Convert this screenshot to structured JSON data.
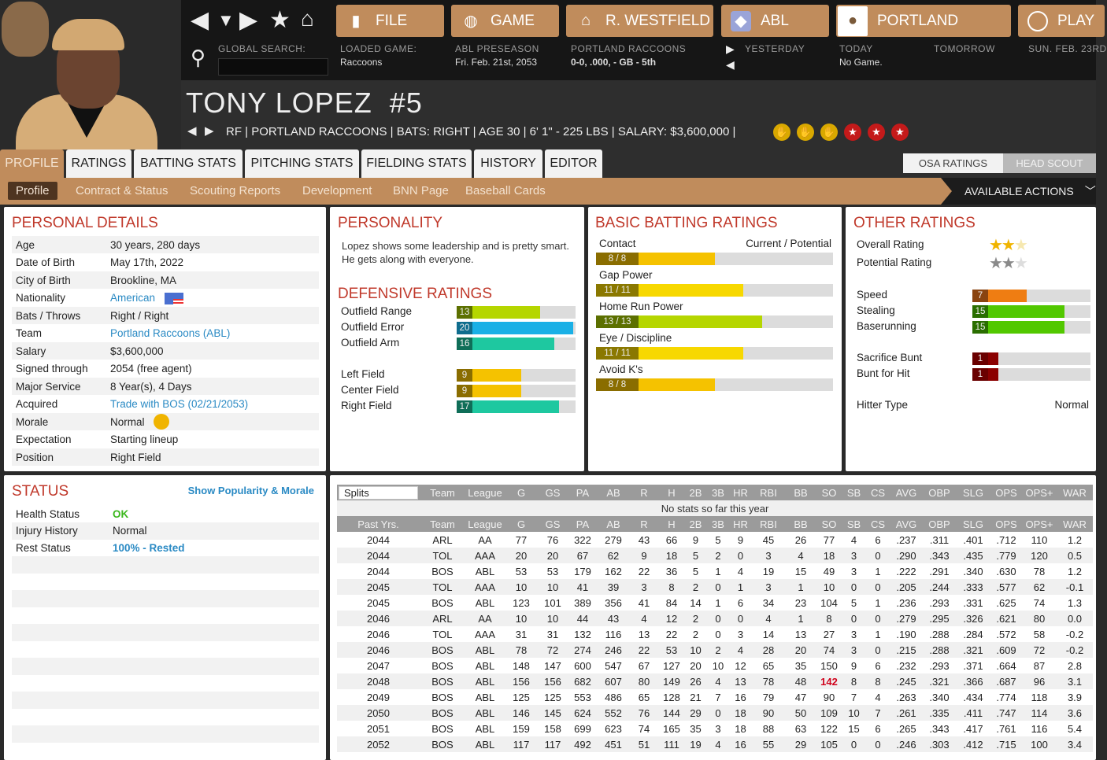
{
  "topbar": {
    "buttons": [
      {
        "label": "FILE",
        "icon": "file-icon"
      },
      {
        "label": "GAME",
        "icon": "globe-icon"
      },
      {
        "label": "R. WESTFIELD",
        "icon": "home-icon"
      },
      {
        "label": "ABL",
        "icon": "league-logo-icon"
      },
      {
        "label": "PORTLAND",
        "icon": "team-logo-icon"
      },
      {
        "label": "PLAY",
        "icon": "baseball-icon"
      }
    ],
    "global_search_label": "GLOBAL SEARCH:",
    "global_search_value": "",
    "loaded_game_label": "LOADED GAME:",
    "loaded_game_value": "Raccoons",
    "season_label": "ABL PRESEASON",
    "season_date": "Fri. Feb. 21st, 2053",
    "team_label": "PORTLAND RACCOONS",
    "team_record": "0-0, .000, - GB - 5th",
    "yesterday": "YESTERDAY",
    "today": "TODAY",
    "today_value": "No Game.",
    "tomorrow": "TOMORROW",
    "play_date": "SUN. FEB. 23RD"
  },
  "player": {
    "name": "TONY LOPEZ  #5",
    "info": "RF | PORTLAND RACCOONS | BATS: RIGHT | AGE 30 | 6' 1\" - 225 LBS | SALARY: $3,600,000 |"
  },
  "tabs": [
    "PROFILE",
    "RATINGS",
    "BATTING STATS",
    "PITCHING STATS",
    "FIELDING STATS",
    "HISTORY",
    "EDITOR"
  ],
  "subtabs": [
    "Profile",
    "Contract & Status",
    "Scouting Reports",
    "Development",
    "BNN Page",
    "Baseball Cards"
  ],
  "rating_toggle": [
    "OSA RATINGS",
    "HEAD SCOUT"
  ],
  "available_actions": "AVAILABLE ACTIONS",
  "personal": {
    "title": "PERSONAL DETAILS",
    "rows": [
      [
        "Age",
        "30 years, 280 days"
      ],
      [
        "Date of Birth",
        "May 17th, 2022"
      ],
      [
        "City of Birth",
        "Brookline, MA"
      ],
      [
        "Nationality",
        "American"
      ],
      [
        "Bats / Throws",
        "Right / Right"
      ],
      [
        "Team",
        "Portland Raccoons (ABL)"
      ],
      [
        "Salary",
        "$3,600,000"
      ],
      [
        "Signed through",
        "2054 (free agent)"
      ],
      [
        "Major Service",
        "8 Year(s), 4 Days"
      ],
      [
        "Acquired",
        "Trade with BOS (02/21/2053)"
      ],
      [
        "Morale",
        "Normal"
      ],
      [
        "Expectation",
        "Starting lineup"
      ],
      [
        "Position",
        "Right Field"
      ]
    ]
  },
  "personality": {
    "title": "PERSONALITY",
    "text": "Lopez shows some leadership and is pretty smart. He gets along with everyone."
  },
  "defense": {
    "title": "DEFENSIVE RATINGS",
    "rows": [
      {
        "label": "Outfield Range",
        "value": 13
      },
      {
        "label": "Outfield Error",
        "value": 20
      },
      {
        "label": "Outfield Arm",
        "value": 16
      },
      {
        "label": "Left Field",
        "value": 9
      },
      {
        "label": "Center Field",
        "value": 9
      },
      {
        "label": "Right Field",
        "value": 17
      }
    ]
  },
  "batting": {
    "title": "BASIC BATTING RATINGS",
    "header": "Current / Potential",
    "rows": [
      {
        "label": "Contact",
        "current": 8,
        "potential": 8,
        "text": "8 / 8"
      },
      {
        "label": "Gap Power",
        "current": 11,
        "potential": 11,
        "text": "11 / 11"
      },
      {
        "label": "Home Run Power",
        "current": 13,
        "potential": 13,
        "text": "13 / 13"
      },
      {
        "label": "Eye / Discipline",
        "current": 11,
        "potential": 11,
        "text": "11 / 11"
      },
      {
        "label": "Avoid K's",
        "current": 8,
        "potential": 8,
        "text": "8 / 8"
      }
    ]
  },
  "other": {
    "title": "OTHER RATINGS",
    "overall_label": "Overall Rating",
    "overall_stars": 2.5,
    "potential_label": "Potential Rating",
    "potential_stars": 2.5,
    "rows": [
      {
        "label": "Speed",
        "value": 7
      },
      {
        "label": "Stealing",
        "value": 15
      },
      {
        "label": "Baserunning",
        "value": 15
      },
      {
        "label": "Sacrifice Bunt",
        "value": 1
      },
      {
        "label": "Bunt for Hit",
        "value": 1
      }
    ],
    "hitter_type_label": "Hitter Type",
    "hitter_type": "Normal"
  },
  "status": {
    "title": "STATUS",
    "link": "Show Popularity & Morale",
    "rows": [
      [
        "Health Status",
        "OK"
      ],
      [
        "Injury History",
        "Normal"
      ],
      [
        "Rest Status",
        "100% - Rested"
      ]
    ]
  },
  "stats": {
    "splits": "Splits",
    "columns": [
      "Team",
      "League",
      "G",
      "GS",
      "PA",
      "AB",
      "R",
      "H",
      "2B",
      "3B",
      "HR",
      "RBI",
      "BB",
      "SO",
      "SB",
      "CS",
      "AVG",
      "OBP",
      "SLG",
      "OPS",
      "OPS+",
      "WAR"
    ],
    "no_stats": "No stats so far this year",
    "past_label": "Past Yrs.",
    "rows": [
      [
        "2044",
        "ARL",
        "AA",
        "77",
        "76",
        "322",
        "279",
        "43",
        "66",
        "9",
        "5",
        "9",
        "45",
        "26",
        "77",
        "4",
        "6",
        ".237",
        ".311",
        ".401",
        ".712",
        "110",
        "1.2"
      ],
      [
        "2044",
        "TOL",
        "AAA",
        "20",
        "20",
        "67",
        "62",
        "9",
        "18",
        "5",
        "2",
        "0",
        "3",
        "4",
        "18",
        "3",
        "0",
        ".290",
        ".343",
        ".435",
        ".779",
        "120",
        "0.5"
      ],
      [
        "2044",
        "BOS",
        "ABL",
        "53",
        "53",
        "179",
        "162",
        "22",
        "36",
        "5",
        "1",
        "4",
        "19",
        "15",
        "49",
        "3",
        "1",
        ".222",
        ".291",
        ".340",
        ".630",
        "78",
        "1.2"
      ],
      [
        "2045",
        "TOL",
        "AAA",
        "10",
        "10",
        "41",
        "39",
        "3",
        "8",
        "2",
        "0",
        "1",
        "3",
        "1",
        "10",
        "0",
        "0",
        ".205",
        ".244",
        ".333",
        ".577",
        "62",
        "-0.1"
      ],
      [
        "2045",
        "BOS",
        "ABL",
        "123",
        "101",
        "389",
        "356",
        "41",
        "84",
        "14",
        "1",
        "6",
        "34",
        "23",
        "104",
        "5",
        "1",
        ".236",
        ".293",
        ".331",
        ".625",
        "74",
        "1.3"
      ],
      [
        "2046",
        "ARL",
        "AA",
        "10",
        "10",
        "44",
        "43",
        "4",
        "12",
        "2",
        "0",
        "0",
        "4",
        "1",
        "8",
        "0",
        "0",
        ".279",
        ".295",
        ".326",
        ".621",
        "80",
        "0.0"
      ],
      [
        "2046",
        "TOL",
        "AAA",
        "31",
        "31",
        "132",
        "116",
        "13",
        "22",
        "2",
        "0",
        "3",
        "14",
        "13",
        "27",
        "3",
        "1",
        ".190",
        ".288",
        ".284",
        ".572",
        "58",
        "-0.2"
      ],
      [
        "2046",
        "BOS",
        "ABL",
        "78",
        "72",
        "274",
        "246",
        "22",
        "53",
        "10",
        "2",
        "4",
        "28",
        "20",
        "74",
        "3",
        "0",
        ".215",
        ".288",
        ".321",
        ".609",
        "72",
        "-0.2"
      ],
      [
        "2047",
        "BOS",
        "ABL",
        "148",
        "147",
        "600",
        "547",
        "67",
        "127",
        "20",
        "10",
        "12",
        "65",
        "35",
        "150",
        "9",
        "6",
        ".232",
        ".293",
        ".371",
        ".664",
        "87",
        "2.8"
      ],
      [
        "2048",
        "BOS",
        "ABL",
        "156",
        "156",
        "682",
        "607",
        "80",
        "149",
        "26",
        "4",
        "13",
        "78",
        "48",
        "142",
        "8",
        "8",
        ".245",
        ".321",
        ".366",
        ".687",
        "96",
        "3.1"
      ],
      [
        "2049",
        "BOS",
        "ABL",
        "125",
        "125",
        "553",
        "486",
        "65",
        "128",
        "21",
        "7",
        "16",
        "79",
        "47",
        "90",
        "7",
        "4",
        ".263",
        ".340",
        ".434",
        ".774",
        "118",
        "3.9"
      ],
      [
        "2050",
        "BOS",
        "ABL",
        "146",
        "145",
        "624",
        "552",
        "76",
        "144",
        "29",
        "0",
        "18",
        "90",
        "50",
        "109",
        "10",
        "7",
        ".261",
        ".335",
        ".411",
        ".747",
        "114",
        "3.6"
      ],
      [
        "2051",
        "BOS",
        "ABL",
        "159",
        "158",
        "699",
        "623",
        "74",
        "165",
        "35",
        "3",
        "18",
        "88",
        "63",
        "122",
        "15",
        "6",
        ".265",
        ".343",
        ".417",
        ".761",
        "116",
        "5.4"
      ],
      [
        "2052",
        "BOS",
        "ABL",
        "117",
        "117",
        "492",
        "451",
        "51",
        "111",
        "19",
        "4",
        "16",
        "55",
        "29",
        "105",
        "0",
        "0",
        ".246",
        ".303",
        ".412",
        ".715",
        "100",
        "3.4"
      ]
    ],
    "highlight": {
      "row": 9,
      "col": 14,
      "color": "#d0021b"
    }
  },
  "colors": {
    "accent": "#c08c5c",
    "title_red": "#c0392b",
    "link": "#2a8ac4",
    "ok": "#3cb81e"
  }
}
